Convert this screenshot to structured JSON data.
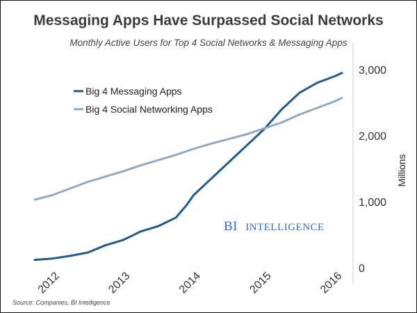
{
  "header": {
    "title": "Messaging Apps Have Surpassed Social Networks",
    "subtitle": "Monthly Active Users for Top 4 Social Networks & Messaging Apps"
  },
  "footer": {
    "source": "Source: Companies, BI Intelligence"
  },
  "watermark": {
    "text_main": "BI",
    "text_second": "INTELLIGENCE",
    "color": "#2f6fd1"
  },
  "chart_data": {
    "type": "line",
    "ylabel": "Millions",
    "ylim": [
      0,
      3000
    ],
    "yticks": [
      0,
      1000,
      2000,
      3000
    ],
    "ytick_labels": [
      "0",
      "1,000",
      "2,000",
      "3,000"
    ],
    "xlim": [
      2011.75,
      2016.1
    ],
    "xticks": [
      2012,
      2013,
      2014,
      2015,
      2016
    ],
    "xtick_labels": [
      "2012",
      "2013",
      "2014",
      "2015",
      "2016"
    ],
    "grid": false,
    "legend": "top-left",
    "series": [
      {
        "name": "Big 4 Messaging Apps",
        "color": "#1f5a8a",
        "x": [
          2011.75,
          2012.0,
          2012.25,
          2012.5,
          2012.75,
          2013.0,
          2013.25,
          2013.5,
          2013.75,
          2013.9,
          2014.0,
          2014.25,
          2014.5,
          2014.75,
          2015.0,
          2015.25,
          2015.5,
          2015.75,
          2016.0,
          2016.1
        ],
        "y": [
          120,
          140,
          180,
          230,
          340,
          420,
          550,
          630,
          760,
          950,
          1100,
          1350,
          1600,
          1850,
          2100,
          2400,
          2650,
          2800,
          2900,
          2950
        ]
      },
      {
        "name": "Big 4 Social Networking Apps",
        "color": "#8fa9c1",
        "x": [
          2011.75,
          2012.0,
          2012.25,
          2012.5,
          2012.75,
          2013.0,
          2013.25,
          2013.5,
          2013.75,
          2014.0,
          2014.25,
          2014.5,
          2014.75,
          2015.0,
          2015.25,
          2015.5,
          2015.75,
          2016.0,
          2016.1
        ],
        "y": [
          1030,
          1100,
          1200,
          1300,
          1380,
          1460,
          1550,
          1630,
          1710,
          1800,
          1880,
          1950,
          2020,
          2110,
          2200,
          2320,
          2420,
          2520,
          2570
        ]
      }
    ]
  }
}
